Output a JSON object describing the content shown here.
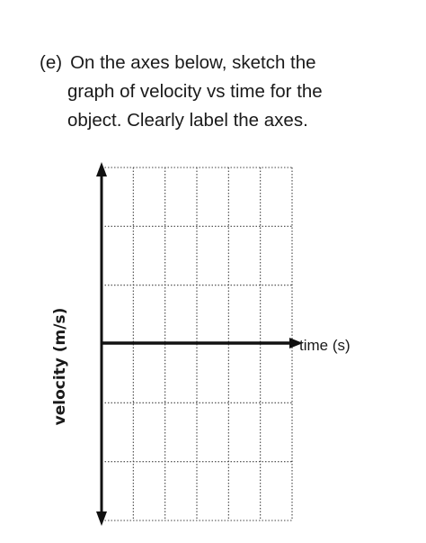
{
  "question": {
    "label": "(e)",
    "line1": "On the axes below, sketch the",
    "line2": "graph of velocity vs time for the",
    "line3": "object. Clearly label the axes."
  },
  "graph": {
    "y_axis_label": "velocity (m/s)",
    "x_axis_label": "time (s)",
    "grid": {
      "columns": 6,
      "rows": 6
    },
    "colors": {
      "axis": "#111111",
      "grid": "#444444"
    }
  }
}
